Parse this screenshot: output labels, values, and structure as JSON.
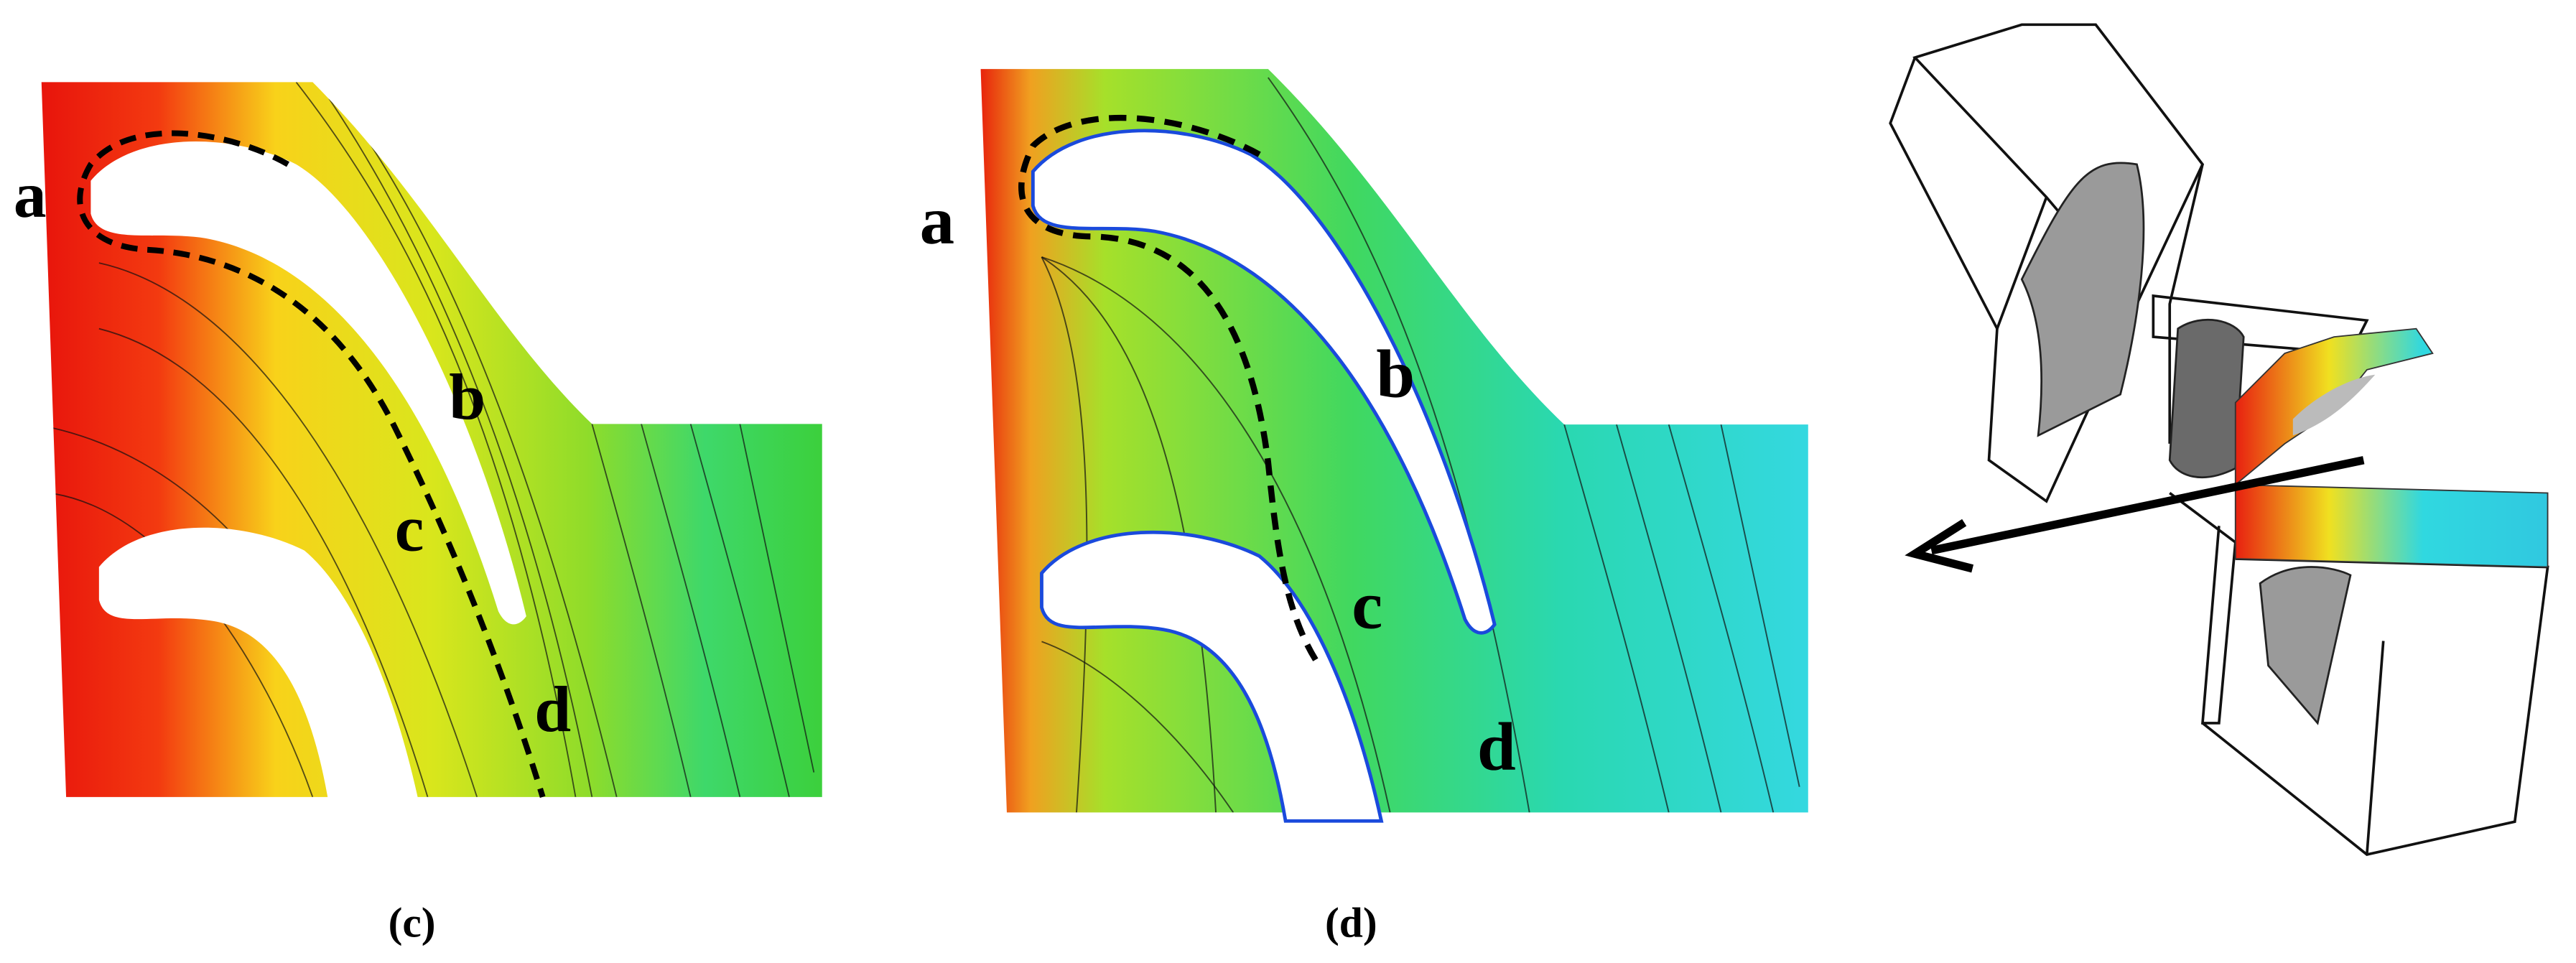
{
  "panels": [
    {
      "caption": "(c)",
      "labels": [
        "a",
        "b",
        "c",
        "d"
      ]
    },
    {
      "caption": "(d)",
      "labels": [
        "a",
        "b",
        "c",
        "d"
      ]
    }
  ]
}
